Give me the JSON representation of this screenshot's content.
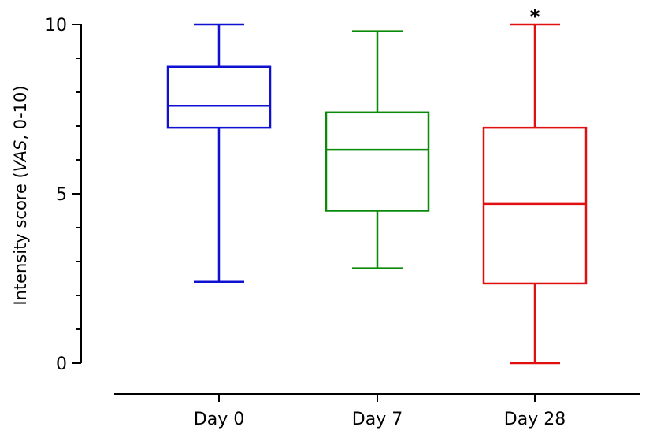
{
  "chart_data": {
    "type": "box",
    "ylabel_pre": "Intensity score (",
    "ylabel_italic": "VAS",
    "ylabel_post": ", 0-10)",
    "ylim": [
      0,
      10
    ],
    "y_ticks": [
      0,
      5,
      10
    ],
    "y_minor_ticks": [
      1,
      2,
      3,
      4,
      6,
      7,
      8,
      9
    ],
    "categories": [
      "Day 0",
      "Day 7",
      "Day 28"
    ],
    "boxes": [
      {
        "category": "Day 0",
        "min": 2.4,
        "q1": 6.95,
        "median": 7.6,
        "q3": 8.75,
        "max": 10,
        "color": "#1010d0",
        "annotation": ""
      },
      {
        "category": "Day 7",
        "min": 2.8,
        "q1": 4.5,
        "median": 6.3,
        "q3": 7.4,
        "max": 9.8,
        "color": "#0a8a0a",
        "annotation": ""
      },
      {
        "category": "Day 28",
        "min": 0,
        "q1": 2.35,
        "median": 4.7,
        "q3": 6.95,
        "max": 10,
        "color": "#e01010",
        "annotation": "*"
      }
    ],
    "grid": false,
    "legend": "none"
  }
}
